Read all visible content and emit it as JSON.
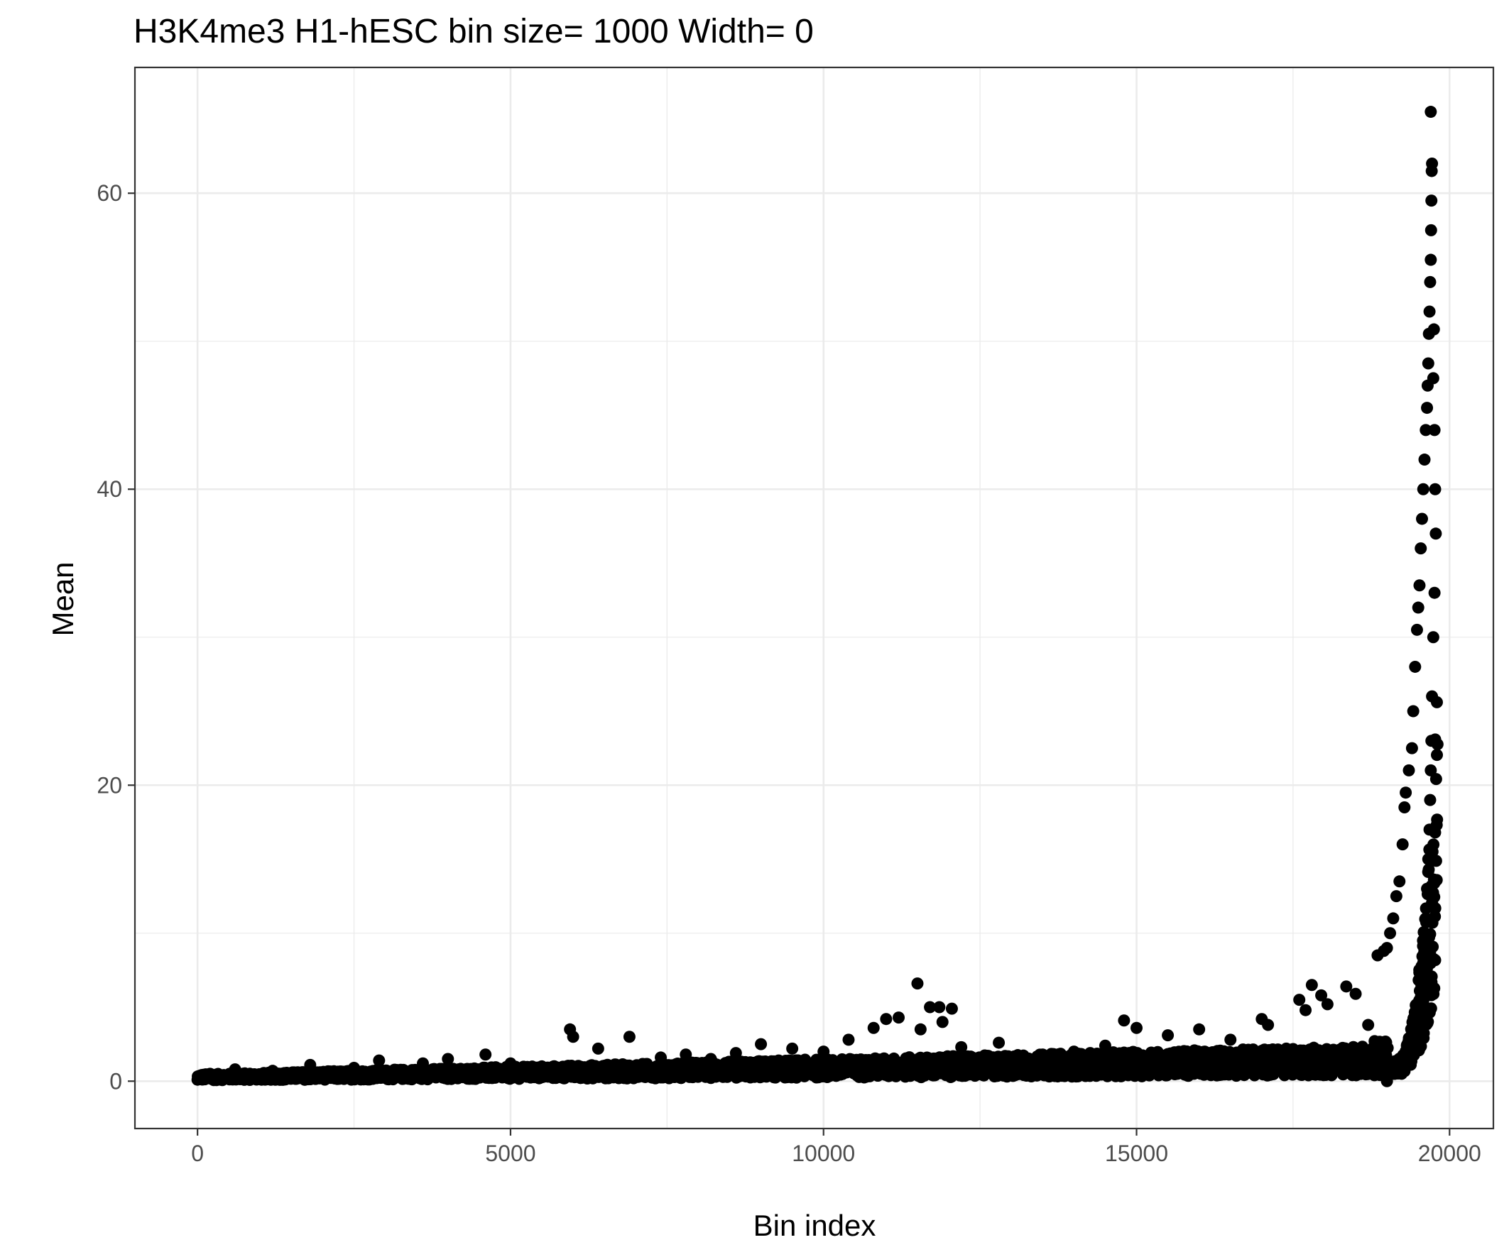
{
  "chart_data": {
    "type": "scatter",
    "title": "H3K4me3 H1-hESC  bin size=  1000  Width=  0",
    "xlabel": "Bin index",
    "ylabel": "Mean",
    "xlim": [
      -1000,
      20700
    ],
    "ylim": [
      -3.2,
      68.5
    ],
    "x_ticks": [
      0,
      5000,
      10000,
      15000,
      20000
    ],
    "x_tick_labels": [
      "0",
      "5000",
      "10000",
      "15000",
      "20000"
    ],
    "y_ticks": [
      0,
      20,
      40,
      60
    ],
    "y_tick_labels": [
      "0",
      "20",
      "40",
      "60"
    ],
    "grid": true,
    "legend": "none",
    "point_color": "#000000",
    "grid_color": "#ebebeb",
    "panel_border_color": "#333333",
    "n_points_shown": 19800,
    "points": [
      [
        0,
        0.1
      ],
      [
        200,
        0.5
      ],
      [
        600,
        0.8
      ],
      [
        1200,
        0.7
      ],
      [
        1800,
        1.1
      ],
      [
        2500,
        0.9
      ],
      [
        2900,
        1.4
      ],
      [
        3600,
        1.2
      ],
      [
        4000,
        1.5
      ],
      [
        4600,
        1.8
      ],
      [
        5000,
        1.2
      ],
      [
        5500,
        1.0
      ],
      [
        5950,
        3.5
      ],
      [
        6000,
        3.0
      ],
      [
        6400,
        2.2
      ],
      [
        6900,
        3.0
      ],
      [
        7400,
        1.6
      ],
      [
        7800,
        1.8
      ],
      [
        8200,
        1.5
      ],
      [
        8600,
        1.9
      ],
      [
        9000,
        2.5
      ],
      [
        9500,
        2.2
      ],
      [
        10000,
        2.0
      ],
      [
        10400,
        2.8
      ],
      [
        10800,
        3.6
      ],
      [
        11000,
        4.2
      ],
      [
        11200,
        4.3
      ],
      [
        11500,
        6.6
      ],
      [
        11550,
        3.5
      ],
      [
        11700,
        5.0
      ],
      [
        11850,
        5.0
      ],
      [
        12050,
        4.9
      ],
      [
        11900,
        4.0
      ],
      [
        12200,
        2.3
      ],
      [
        12800,
        2.6
      ],
      [
        13500,
        1.8
      ],
      [
        14000,
        2.0
      ],
      [
        14500,
        2.4
      ],
      [
        14800,
        4.1
      ],
      [
        15000,
        3.6
      ],
      [
        15500,
        3.1
      ],
      [
        16000,
        3.5
      ],
      [
        16500,
        2.8
      ],
      [
        17000,
        4.2
      ],
      [
        17100,
        3.8
      ],
      [
        17600,
        5.5
      ],
      [
        17700,
        4.8
      ],
      [
        17800,
        6.5
      ],
      [
        17950,
        5.8
      ],
      [
        18050,
        5.2
      ],
      [
        18350,
        6.4
      ],
      [
        18500,
        5.9
      ],
      [
        18700,
        3.8
      ],
      [
        18850,
        8.5
      ],
      [
        18950,
        8.8
      ],
      [
        19000,
        9.0
      ],
      [
        19050,
        10.0
      ],
      [
        19100,
        11.0
      ],
      [
        19150,
        12.5
      ],
      [
        19200,
        13.5
      ],
      [
        19250,
        16.0
      ],
      [
        19280,
        18.5
      ],
      [
        19300,
        19.5
      ],
      [
        19350,
        21.0
      ],
      [
        19400,
        22.5
      ],
      [
        19420,
        25.0
      ],
      [
        19450,
        28.0
      ],
      [
        19480,
        30.5
      ],
      [
        19500,
        32.0
      ],
      [
        19520,
        33.5
      ],
      [
        19540,
        36.0
      ],
      [
        19560,
        38.0
      ],
      [
        19580,
        40.0
      ],
      [
        19600,
        42.0
      ],
      [
        19620,
        44.0
      ],
      [
        19640,
        45.5
      ],
      [
        19650,
        47.0
      ],
      [
        19660,
        48.5
      ],
      [
        19670,
        50.5
      ],
      [
        19680,
        52.0
      ],
      [
        19690,
        54.0
      ],
      [
        19700,
        55.5
      ],
      [
        19705,
        57.5
      ],
      [
        19710,
        59.5
      ],
      [
        19715,
        61.5
      ],
      [
        19720,
        62.0
      ],
      [
        19700,
        65.5
      ],
      [
        19750,
        50.8
      ],
      [
        19740,
        47.5
      ],
      [
        19760,
        44.0
      ],
      [
        19770,
        40.0
      ],
      [
        19780,
        37.0
      ],
      [
        19760,
        33.0
      ],
      [
        19740,
        30.0
      ],
      [
        19720,
        26.0
      ],
      [
        19710,
        23.0
      ],
      [
        19700,
        21.0
      ],
      [
        19690,
        19.0
      ],
      [
        19680,
        17.0
      ],
      [
        19660,
        15.0
      ],
      [
        19640,
        13.0
      ],
      [
        19620,
        11.0
      ],
      [
        19600,
        9.5
      ],
      [
        19580,
        8.0
      ],
      [
        19550,
        6.5
      ],
      [
        19500,
        5.0
      ],
      [
        19450,
        3.5
      ],
      [
        19400,
        2.5
      ],
      [
        19350,
        1.5
      ],
      [
        19300,
        1.0
      ],
      [
        19000,
        0.0
      ],
      [
        18800,
        0.4
      ],
      [
        18600,
        1.2
      ],
      [
        18400,
        2.0
      ]
    ]
  }
}
